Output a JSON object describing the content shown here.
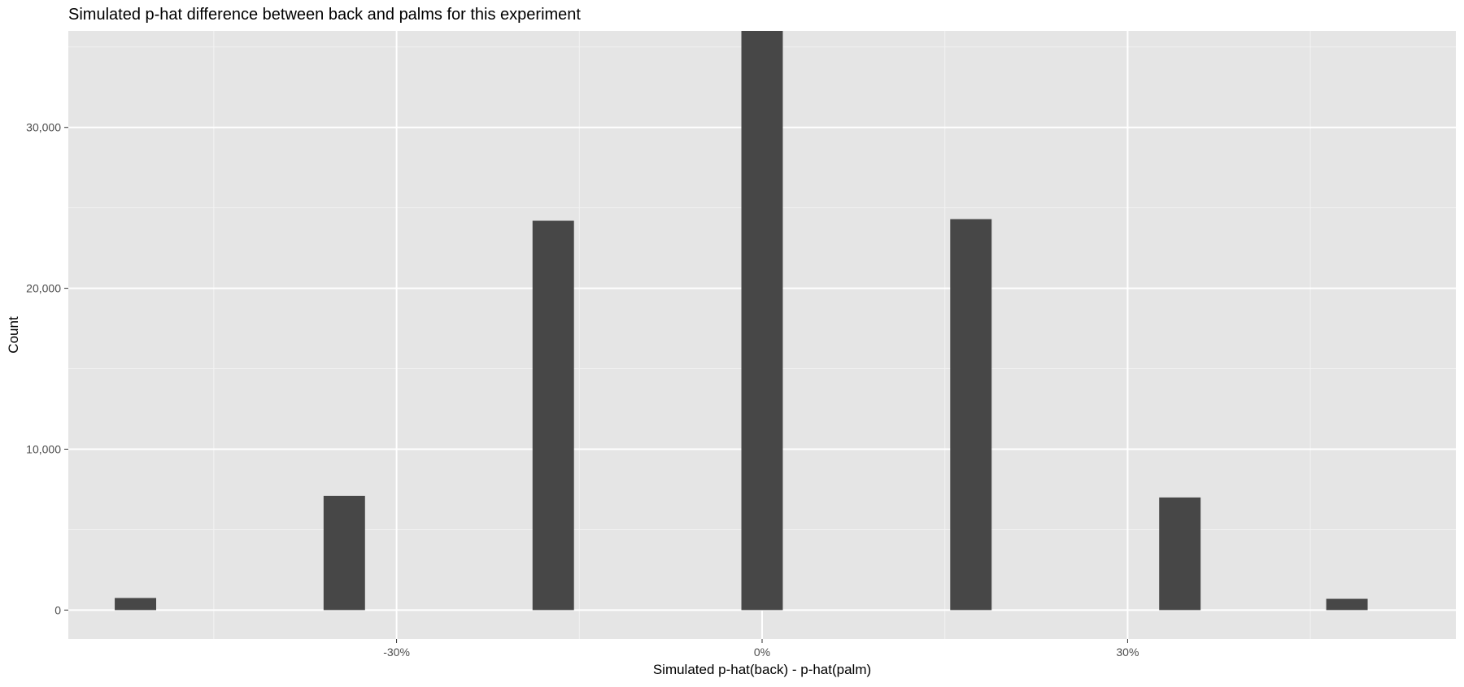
{
  "chart_data": {
    "type": "bar",
    "title": "Simulated p-hat difference between back and palms for this experiment",
    "xlabel": "Simulated p-hat(back) - p-hat(palm)",
    "ylabel": "Count",
    "x": [
      -0.5143,
      -0.3429,
      -0.1714,
      0.0,
      0.1714,
      0.3429,
      0.48
    ],
    "values": [
      750,
      7100,
      24200,
      36000,
      24300,
      7000,
      700
    ],
    "bar_width": 0.034,
    "xlim": [
      -0.5694,
      0.5694
    ],
    "ylim": [
      -1800,
      36000
    ],
    "x_ticks": [
      -0.3,
      0,
      0.3
    ],
    "x_tick_labels": [
      "-30%",
      "0%",
      "30%"
    ],
    "x_minor_ticks": [
      -0.45,
      -0.15,
      0.15,
      0.45
    ],
    "y_ticks": [
      0,
      10000,
      20000,
      30000
    ],
    "y_tick_labels": [
      "0",
      "10,000",
      "20,000",
      "30,000"
    ],
    "y_minor_ticks": [
      5000,
      15000,
      25000,
      35000
    ],
    "grid": true,
    "colors": {
      "panel_background": "#E5E5E5",
      "grid_major": "#FFFFFF",
      "grid_minor": "#F2F2F2",
      "bar_fill": "#474747",
      "tick_label": "#4D4D4D",
      "axis_title": "#000000"
    }
  }
}
